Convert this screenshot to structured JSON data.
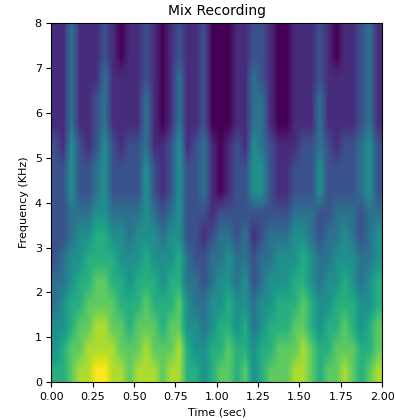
{
  "chart_data": {
    "type": "heatmap",
    "title": "Mix Recording",
    "x_label": "Time (sec)",
    "y_label": "Frequency (KHz)",
    "color": "viridis",
    "xlim": [
      0,
      2
    ],
    "ylim": [
      0,
      8
    ],
    "xticks": [
      {
        "value": 0,
        "label": "0.00"
      },
      {
        "value": 0.25,
        "label": "0.25"
      },
      {
        "value": 0.5,
        "label": "0.50"
      },
      {
        "value": 0.75,
        "label": "0.75"
      },
      {
        "value": 1,
        "label": "1.00"
      },
      {
        "value": 1.25,
        "label": "1.25"
      },
      {
        "value": 1.5,
        "label": "1.50"
      },
      {
        "value": 1.75,
        "label": "1.75"
      },
      {
        "value": 2,
        "label": "2.00"
      }
    ],
    "yticks": [
      0,
      1,
      2,
      3,
      4,
      5,
      6,
      7,
      8
    ],
    "cells": [
      [
        6,
        6,
        7,
        8,
        8,
        9,
        9,
        8,
        8,
        7,
        8,
        8,
        8,
        7,
        8,
        8,
        6,
        6,
        5,
        6,
        7,
        7,
        6,
        7,
        5,
        6,
        7,
        7,
        7,
        8,
        8,
        7,
        6,
        7,
        7,
        8,
        7,
        6,
        7,
        8
      ],
      [
        5,
        6,
        7,
        7,
        8,
        8,
        8,
        8,
        7,
        7,
        7,
        8,
        7,
        7,
        7,
        8,
        6,
        5,
        5,
        6,
        6,
        7,
        6,
        6,
        5,
        6,
        6,
        7,
        7,
        7,
        8,
        7,
        6,
        6,
        7,
        7,
        7,
        6,
        6,
        7
      ],
      [
        5,
        5,
        6,
        7,
        7,
        8,
        8,
        7,
        7,
        6,
        7,
        7,
        7,
        6,
        7,
        7,
        5,
        5,
        4,
        5,
        6,
        6,
        5,
        6,
        4,
        5,
        6,
        6,
        6,
        7,
        7,
        6,
        5,
        6,
        6,
        7,
        6,
        5,
        6,
        7
      ],
      [
        4,
        5,
        6,
        6,
        7,
        7,
        7,
        7,
        6,
        6,
        6,
        7,
        6,
        6,
        6,
        7,
        5,
        4,
        4,
        5,
        5,
        6,
        5,
        5,
        4,
        5,
        5,
        6,
        6,
        6,
        7,
        6,
        5,
        5,
        6,
        6,
        6,
        5,
        5,
        6
      ],
      [
        4,
        4,
        5,
        6,
        6,
        7,
        7,
        6,
        6,
        5,
        6,
        6,
        6,
        5,
        6,
        6,
        4,
        4,
        3,
        4,
        5,
        5,
        4,
        5,
        3,
        4,
        5,
        5,
        5,
        6,
        6,
        5,
        4,
        5,
        5,
        6,
        5,
        4,
        5,
        6
      ],
      [
        3,
        4,
        5,
        5,
        6,
        6,
        6,
        6,
        5,
        5,
        5,
        6,
        5,
        5,
        5,
        6,
        4,
        3,
        3,
        4,
        4,
        5,
        4,
        4,
        3,
        4,
        4,
        5,
        5,
        5,
        6,
        5,
        4,
        4,
        5,
        5,
        5,
        4,
        4,
        5
      ],
      [
        3,
        3,
        4,
        5,
        5,
        6,
        6,
        5,
        5,
        4,
        5,
        5,
        5,
        4,
        5,
        5,
        3,
        3,
        2,
        3,
        4,
        4,
        3,
        4,
        2,
        3,
        4,
        4,
        4,
        5,
        5,
        4,
        3,
        4,
        4,
        5,
        4,
        3,
        4,
        5
      ],
      [
        3,
        3,
        4,
        4,
        4,
        5,
        5,
        4,
        4,
        4,
        4,
        5,
        4,
        3,
        4,
        5,
        3,
        3,
        3,
        2,
        3,
        3,
        3,
        3,
        3,
        3,
        3,
        3,
        3,
        4,
        4,
        4,
        3,
        3,
        4,
        4,
        4,
        3,
        4,
        4
      ],
      [
        3,
        3,
        5,
        3,
        3,
        4,
        5,
        3,
        3,
        3,
        3,
        5,
        3,
        2,
        3,
        5,
        3,
        3,
        4,
        2,
        1,
        2,
        3,
        3,
        5,
        5,
        3,
        2,
        2,
        3,
        3,
        3,
        5,
        3,
        3,
        3,
        3,
        4,
        5,
        3
      ],
      [
        3,
        3,
        5,
        3,
        3,
        4,
        5,
        3,
        3,
        3,
        3,
        5,
        3,
        2,
        3,
        5,
        3,
        3,
        4,
        2,
        1,
        2,
        3,
        3,
        5,
        5,
        3,
        2,
        2,
        3,
        3,
        3,
        5,
        3,
        3,
        3,
        3,
        4,
        5,
        3
      ],
      [
        3,
        2,
        5,
        3,
        2,
        3,
        5,
        3,
        2,
        3,
        3,
        4,
        2,
        2,
        3,
        5,
        2,
        3,
        4,
        2,
        1,
        2,
        3,
        2,
        5,
        4,
        3,
        2,
        2,
        2,
        3,
        3,
        4,
        3,
        2,
        3,
        3,
        4,
        5,
        3
      ],
      [
        2,
        2,
        4,
        2,
        2,
        3,
        4,
        2,
        2,
        2,
        2,
        4,
        2,
        1,
        2,
        4,
        2,
        2,
        3,
        1,
        1,
        1,
        2,
        2,
        4,
        4,
        2,
        1,
        1,
        2,
        2,
        2,
        4,
        2,
        2,
        2,
        2,
        3,
        4,
        2
      ],
      [
        2,
        2,
        4,
        2,
        2,
        3,
        4,
        2,
        2,
        2,
        2,
        4,
        2,
        1,
        2,
        4,
        2,
        2,
        3,
        1,
        1,
        1,
        2,
        2,
        4,
        4,
        2,
        1,
        1,
        2,
        2,
        2,
        4,
        2,
        2,
        2,
        2,
        3,
        4,
        2
      ],
      [
        2,
        2,
        4,
        2,
        2,
        2,
        4,
        2,
        2,
        2,
        2,
        3,
        2,
        1,
        2,
        4,
        2,
        2,
        3,
        1,
        1,
        1,
        2,
        2,
        4,
        3,
        2,
        1,
        1,
        2,
        2,
        2,
        3,
        2,
        2,
        2,
        2,
        3,
        4,
        2
      ],
      [
        2,
        2,
        4,
        2,
        2,
        2,
        3,
        2,
        1,
        2,
        2,
        3,
        2,
        1,
        2,
        3,
        2,
        2,
        3,
        1,
        1,
        1,
        2,
        2,
        3,
        3,
        2,
        1,
        1,
        2,
        2,
        2,
        3,
        2,
        1,
        2,
        2,
        3,
        4,
        2
      ],
      [
        2,
        2,
        4,
        2,
        2,
        2,
        3,
        2,
        1,
        2,
        2,
        3,
        2,
        1,
        2,
        3,
        2,
        2,
        3,
        1,
        1,
        1,
        2,
        2,
        3,
        3,
        2,
        1,
        1,
        2,
        2,
        2,
        3,
        2,
        1,
        2,
        2,
        3,
        4,
        2
      ]
    ]
  }
}
